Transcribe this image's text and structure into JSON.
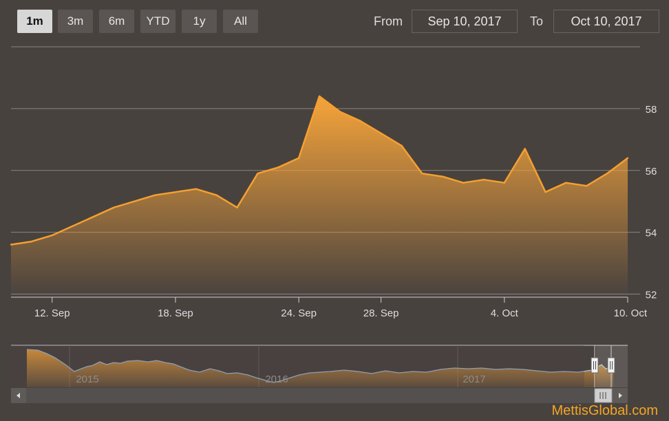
{
  "range_selector": {
    "buttons": [
      {
        "label": "1m",
        "active": true
      },
      {
        "label": "3m",
        "active": false
      },
      {
        "label": "6m",
        "active": false
      },
      {
        "label": "YTD",
        "active": false
      },
      {
        "label": "1y",
        "active": false
      },
      {
        "label": "All",
        "active": false
      }
    ],
    "from_label": "From",
    "from_value": "Sep 10, 2017",
    "to_label": "To",
    "to_value": "Oct 10, 2017"
  },
  "navigator": {
    "year_labels": [
      "2015",
      "2016",
      "2017"
    ],
    "scroll_left_icon": "chevron-left-icon",
    "scroll_right_icon": "chevron-right-icon"
  },
  "watermark": "MettisGlobal.com",
  "colors": {
    "background": "#48423f",
    "series_line": "#f5a030",
    "area_top": "#f7a43a",
    "grid": "#8a8480",
    "navigator_line": "#a9c4e0"
  },
  "chart_data": {
    "type": "area",
    "x_ticks": [
      "12. Sep",
      "18. Sep",
      "24. Sep",
      "28. Sep",
      "4. Oct",
      "10. Oct"
    ],
    "y_ticks": [
      52,
      54,
      56,
      58
    ],
    "ylim": [
      51.9,
      60
    ],
    "y_axis_position": "right",
    "grid": true,
    "series": [
      {
        "x": [
          "2017-09-10",
          "2017-09-11",
          "2017-09-12",
          "2017-09-13",
          "2017-09-14",
          "2017-09-15",
          "2017-09-16",
          "2017-09-17",
          "2017-09-18",
          "2017-09-19",
          "2017-09-20",
          "2017-09-21",
          "2017-09-22",
          "2017-09-23",
          "2017-09-24",
          "2017-09-25",
          "2017-09-26",
          "2017-09-27",
          "2017-09-28",
          "2017-09-29",
          "2017-09-30",
          "2017-10-01",
          "2017-10-02",
          "2017-10-03",
          "2017-10-04",
          "2017-10-05",
          "2017-10-06",
          "2017-10-07",
          "2017-10-08",
          "2017-10-09",
          "2017-10-10"
        ],
        "y": [
          53.6,
          53.7,
          53.9,
          54.2,
          54.5,
          54.8,
          55.0,
          55.2,
          55.3,
          55.4,
          55.2,
          54.8,
          55.9,
          56.1,
          56.4,
          58.4,
          57.9,
          57.6,
          57.2,
          56.8,
          55.9,
          55.8,
          55.6,
          55.7,
          55.6,
          56.7,
          55.3,
          55.6,
          55.5,
          55.9,
          56.4
        ]
      }
    ]
  }
}
